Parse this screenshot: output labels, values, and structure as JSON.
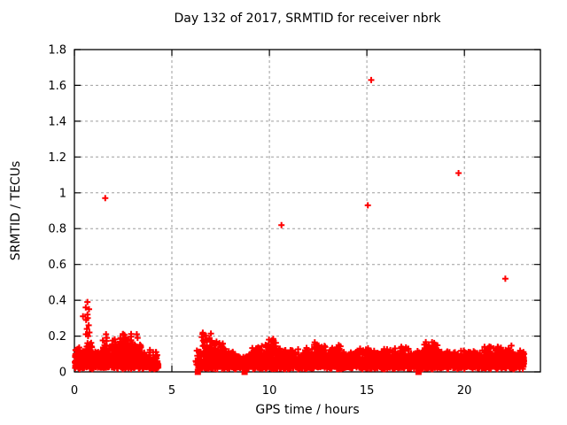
{
  "chart_data": {
    "type": "scatter",
    "title": "Day 132 of 2017, SRMTID for receiver nbrk",
    "xlabel": "GPS time / hours",
    "ylabel": "SRMTID / TECUs",
    "xlim": [
      0,
      23.9
    ],
    "ylim": [
      0,
      1.8
    ],
    "xticks": [
      {
        "v": 0,
        "label": "0"
      },
      {
        "v": 5,
        "label": "5"
      },
      {
        "v": 10,
        "label": "10"
      },
      {
        "v": 15,
        "label": "15"
      },
      {
        "v": 20,
        "label": "20"
      }
    ],
    "yticks": [
      {
        "v": 0,
        "label": "0"
      },
      {
        "v": 0.2,
        "label": "0.2"
      },
      {
        "v": 0.4,
        "label": "0.4"
      },
      {
        "v": 0.6,
        "label": "0.6"
      },
      {
        "v": 0.8,
        "label": "0.8"
      },
      {
        "v": 1,
        "label": "1"
      },
      {
        "v": 1.2,
        "label": "1.2"
      },
      {
        "v": 1.4,
        "label": "1.4"
      },
      {
        "v": 1.6,
        "label": "1.6"
      },
      {
        "v": 1.8,
        "label": "1.8"
      }
    ],
    "grid": true,
    "legend": "none",
    "colors": {
      "points": "#ff0000",
      "grid": "#9e9e9e",
      "axis": "#000000",
      "background": "#ffffff"
    },
    "marker": {
      "shape": "plus",
      "size": 7,
      "stroke": 2
    },
    "outlier_points": [
      [
        1.58,
        0.97
      ],
      [
        10.62,
        0.82
      ],
      [
        15.05,
        0.93
      ],
      [
        15.22,
        1.63
      ],
      [
        19.7,
        1.11
      ],
      [
        22.1,
        0.52
      ]
    ],
    "early_spike_points": [
      [
        0.67,
        0.39
      ],
      [
        0.58,
        0.36
      ],
      [
        0.75,
        0.35
      ],
      [
        0.67,
        0.32
      ],
      [
        0.44,
        0.31
      ],
      [
        0.68,
        0.3
      ],
      [
        0.6,
        0.29
      ],
      [
        0.73,
        0.26
      ],
      [
        0.64,
        0.24
      ],
      [
        0.77,
        0.22
      ],
      [
        0.59,
        0.21
      ],
      [
        0.7,
        0.2
      ],
      [
        1.62,
        0.21
      ],
      [
        1.66,
        0.19
      ],
      [
        3.2,
        0.21
      ],
      [
        3.24,
        0.19
      ]
    ],
    "zero_square_points": [
      [
        6.33,
        0.0
      ],
      [
        8.73,
        0.0
      ],
      [
        17.65,
        0.0
      ]
    ],
    "dense_band_segment_format": "[x_start_hours, x_end_hours, approx_point_count, approx_max_y_TECUs]",
    "dense_band_base_y": 0.015,
    "dense_band_segments": [
      [
        0.02,
        0.45,
        90,
        0.14
      ],
      [
        0.45,
        0.9,
        70,
        0.17
      ],
      [
        0.9,
        1.45,
        110,
        0.12
      ],
      [
        1.45,
        2.2,
        150,
        0.18
      ],
      [
        2.2,
        2.9,
        140,
        0.22
      ],
      [
        2.9,
        3.5,
        100,
        0.17
      ],
      [
        3.5,
        4.3,
        130,
        0.12
      ],
      [
        6.2,
        6.45,
        15,
        0.13
      ],
      [
        6.45,
        7.05,
        110,
        0.22
      ],
      [
        7.05,
        7.75,
        120,
        0.17
      ],
      [
        7.75,
        8.45,
        110,
        0.12
      ],
      [
        8.45,
        9.05,
        90,
        0.1
      ],
      [
        9.05,
        9.7,
        110,
        0.16
      ],
      [
        9.7,
        10.35,
        110,
        0.19
      ],
      [
        10.35,
        11.15,
        130,
        0.13
      ],
      [
        11.15,
        12.25,
        170,
        0.13
      ],
      [
        12.25,
        12.95,
        120,
        0.17
      ],
      [
        12.95,
        13.65,
        120,
        0.15
      ],
      [
        13.65,
        14.45,
        130,
        0.12
      ],
      [
        14.45,
        15.45,
        150,
        0.14
      ],
      [
        15.45,
        16.25,
        130,
        0.13
      ],
      [
        16.25,
        17.15,
        140,
        0.14
      ],
      [
        17.15,
        17.95,
        120,
        0.12
      ],
      [
        17.95,
        18.75,
        130,
        0.17
      ],
      [
        18.75,
        19.65,
        140,
        0.12
      ],
      [
        19.65,
        20.65,
        150,
        0.12
      ],
      [
        20.65,
        21.65,
        150,
        0.14
      ],
      [
        21.65,
        22.45,
        130,
        0.15
      ],
      [
        22.45,
        23.05,
        100,
        0.12
      ]
    ]
  }
}
